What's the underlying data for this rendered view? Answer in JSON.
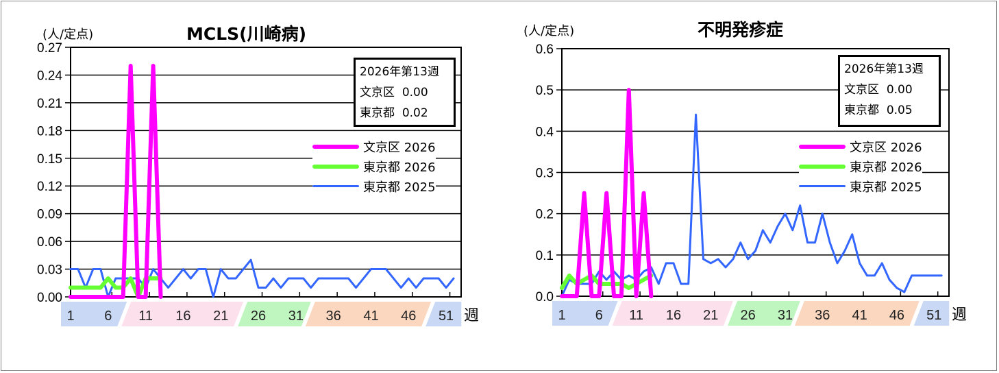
{
  "charts": [
    {
      "title": "MCLS(川崎病)",
      "unit_label": "(人/定点)",
      "week_suffix": "週",
      "info_box": {
        "period": "2026年第13週",
        "rows": [
          {
            "region": "文京区",
            "value": "0.00"
          },
          {
            "region": "東京都",
            "value": "0.02"
          }
        ]
      },
      "legend": [
        {
          "label": "文京区 2026",
          "color": "#FF00FF"
        },
        {
          "label": "東京都 2026",
          "color": "#66FF33"
        },
        {
          "label": "東京都 2025",
          "color": "#3366FF"
        }
      ],
      "y_ticks": [
        "0.00",
        "0.03",
        "0.06",
        "0.09",
        "0.12",
        "0.15",
        "0.18",
        "0.21",
        "0.24",
        "0.27"
      ],
      "x_labels": [
        "1",
        "6",
        "11",
        "16",
        "21",
        "26",
        "31",
        "36",
        "41",
        "46",
        "51"
      ]
    },
    {
      "title": "不明発疹症",
      "unit_label": "(人/定点)",
      "week_suffix": "週",
      "info_box": {
        "period": "2026年第13週",
        "rows": [
          {
            "region": "文京区",
            "value": "0.00"
          },
          {
            "region": "東京都",
            "value": "0.05"
          }
        ]
      },
      "legend": [
        {
          "label": "文京区 2026",
          "color": "#FF00FF"
        },
        {
          "label": "東京都 2026",
          "color": "#66FF33"
        },
        {
          "label": "東京都 2025",
          "color": "#3366FF"
        }
      ],
      "y_ticks": [
        "0.0",
        "0.1",
        "0.2",
        "0.3",
        "0.4",
        "0.5",
        "0.6"
      ],
      "x_labels": [
        "1",
        "6",
        "11",
        "16",
        "21",
        "26",
        "31",
        "36",
        "41",
        "46",
        "51"
      ]
    }
  ],
  "season_bands": [
    {
      "name": "winter",
      "color": "#C9D9F5"
    },
    {
      "name": "spring",
      "color": "#FCE0EC"
    },
    {
      "name": "summer",
      "color": "#BFF5BF"
    },
    {
      "name": "autumn",
      "color": "#FAD7BE"
    },
    {
      "name": "winter2",
      "color": "#C9D9F5"
    }
  ],
  "chart_data": [
    {
      "type": "line",
      "title": "MCLS(川崎病)",
      "xlabel": "週",
      "ylabel": "(人/定点)",
      "ylim": [
        0,
        0.27
      ],
      "y_ticks": [
        0,
        0.03,
        0.06,
        0.09,
        0.12,
        0.15,
        0.18,
        0.21,
        0.24,
        0.27
      ],
      "x_ticks": [
        1,
        6,
        11,
        16,
        21,
        26,
        31,
        36,
        41,
        46,
        51
      ],
      "xlim": [
        1,
        52
      ],
      "grid": true,
      "legend_position": "upper right",
      "series": [
        {
          "name": "文京区 2026",
          "color": "#FF00FF",
          "values": [
            0,
            0,
            0,
            0,
            0,
            0,
            0,
            0,
            0.25,
            0,
            0,
            0.25,
            0
          ]
        },
        {
          "name": "東京都 2026",
          "color": "#66FF33",
          "values": [
            0.01,
            0.01,
            0.01,
            0.01,
            0.01,
            0.02,
            0.01,
            0.01,
            0.02,
            0.0,
            0.02,
            0.02,
            0.02
          ]
        },
        {
          "name": "東京都 2025",
          "color": "#3366FF",
          "values": [
            0.03,
            0.03,
            0.01,
            0.03,
            0.03,
            0.0,
            0.02,
            0.02,
            0.02,
            0.02,
            0.01,
            0.03,
            0.02,
            0.01,
            0.02,
            0.03,
            0.02,
            0.03,
            0.03,
            0.0,
            0.03,
            0.02,
            0.02,
            0.03,
            0.04,
            0.01,
            0.01,
            0.02,
            0.01,
            0.02,
            0.02,
            0.02,
            0.01,
            0.02,
            0.02,
            0.02,
            0.02,
            0.02,
            0.01,
            0.02,
            0.03,
            0.03,
            0.03,
            0.02,
            0.01,
            0.02,
            0.01,
            0.02,
            0.02,
            0.02,
            0.01,
            0.02
          ]
        }
      ]
    },
    {
      "type": "line",
      "title": "不明発疹症",
      "xlabel": "週",
      "ylabel": "(人/定点)",
      "ylim": [
        0,
        0.6
      ],
      "y_ticks": [
        0,
        0.1,
        0.2,
        0.3,
        0.4,
        0.5,
        0.6
      ],
      "x_ticks": [
        1,
        6,
        11,
        16,
        21,
        26,
        31,
        36,
        41,
        46,
        51
      ],
      "xlim": [
        1,
        52
      ],
      "grid": true,
      "legend_position": "upper right",
      "series": [
        {
          "name": "文京区 2026",
          "color": "#FF00FF",
          "values": [
            0,
            0,
            0,
            0.25,
            0,
            0,
            0.25,
            0,
            0,
            0.5,
            0,
            0.25,
            0
          ]
        },
        {
          "name": "東京都 2026",
          "color": "#66FF33",
          "values": [
            0.02,
            0.05,
            0.03,
            0.04,
            0.05,
            0.03,
            0.03,
            0.03,
            0.03,
            0.02,
            0.03,
            0.04,
            0.05
          ]
        },
        {
          "name": "東京都 2025",
          "color": "#3366FF",
          "values": [
            0.0,
            0.04,
            0.03,
            0.03,
            0.03,
            0.06,
            0.04,
            0.06,
            0.04,
            0.05,
            0.04,
            0.06,
            0.07,
            0.03,
            0.08,
            0.08,
            0.03,
            0.03,
            0.44,
            0.09,
            0.08,
            0.09,
            0.07,
            0.09,
            0.13,
            0.09,
            0.11,
            0.16,
            0.13,
            0.17,
            0.2,
            0.16,
            0.22,
            0.13,
            0.13,
            0.2,
            0.13,
            0.08,
            0.11,
            0.15,
            0.08,
            0.05,
            0.05,
            0.08,
            0.04,
            0.02,
            0.01,
            0.05,
            0.05,
            0.05,
            0.05,
            0.05
          ]
        }
      ]
    }
  ]
}
